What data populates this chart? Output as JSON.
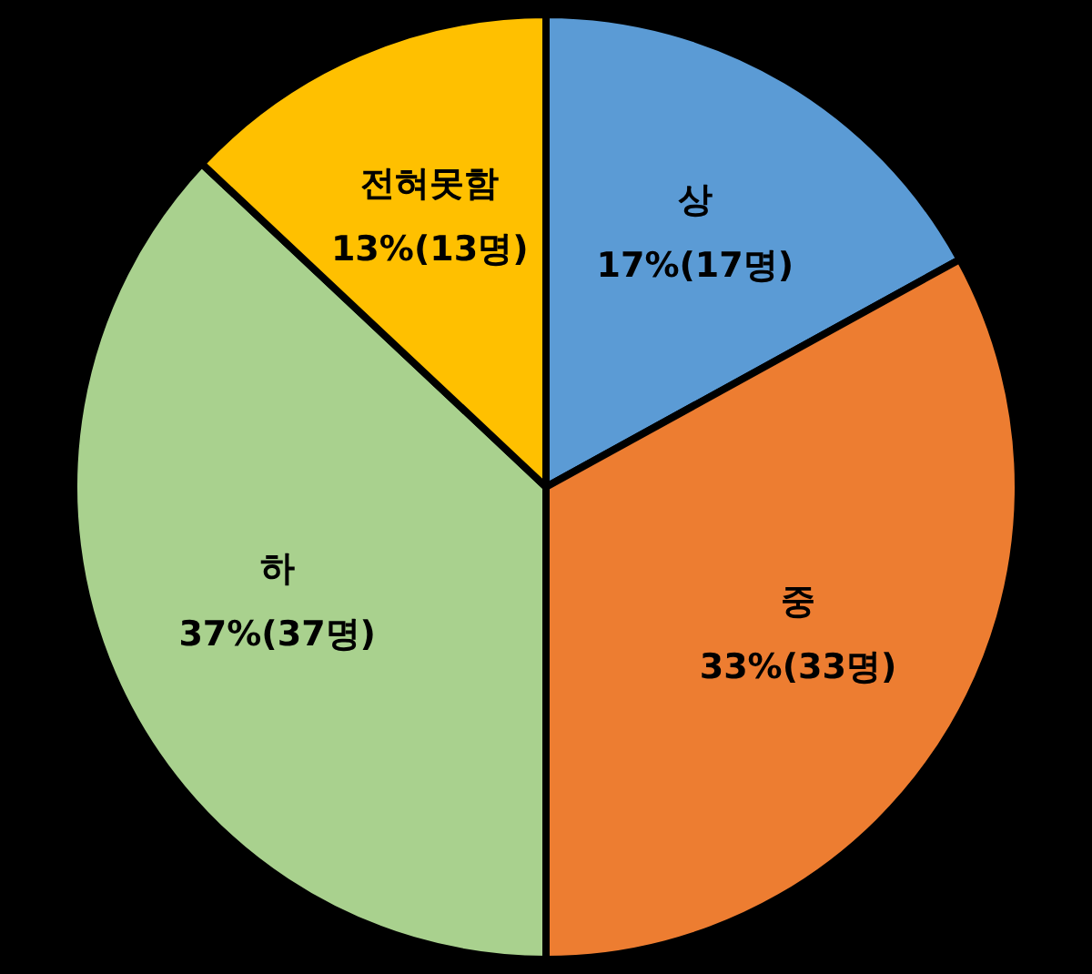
{
  "chart_data": {
    "type": "pie",
    "categories": [
      "상",
      "중",
      "하",
      "전혀못함"
    ],
    "values": [
      17,
      33,
      37,
      13
    ],
    "colors": [
      "#5b9bd5",
      "#ed7d31",
      "#a9d18e",
      "#ffc000"
    ],
    "value_labels": [
      "17%(17명)",
      "33%(33명)",
      "37%(37명)",
      "13%(13명)"
    ],
    "legend": false
  }
}
